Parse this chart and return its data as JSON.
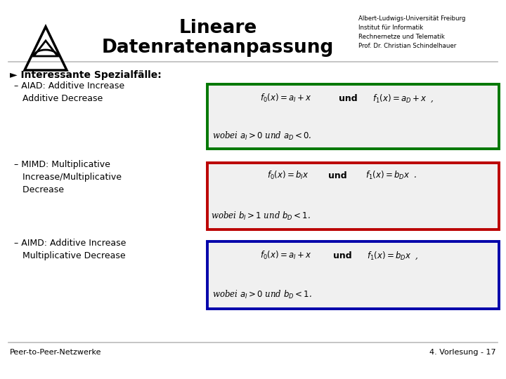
{
  "title_line1": "Lineare",
  "title_line2": "Datenratenanpassung",
  "university_text": "Albert-Ludwigs-Universität Freiburg\nInstitut für Informatik\nRechnernetze und Telematik\nProf. Dr. Christian Schindelhauer",
  "background_color": "#ffffff",
  "header_line_color": "#bbbbbb",
  "bullet_main": "► Interessante Spezialfälle:",
  "bullet1_title": "– AIAD: Additive Increase\n   Additive Decrease",
  "bullet2_title": "– MIMD: Multiplicative\n   Increase/Multiplicative\n   Decrease",
  "bullet3_title": "– AIMD: Additive Increase\n   Multiplicative Decrease",
  "box1_color": "#007700",
  "box2_color": "#bb0000",
  "box3_color": "#0000aa",
  "box_bg": "#f0f0f0",
  "formula1_line1": "$f_0(x) = a_I + x$",
  "formula1_und": "und",
  "formula1_f1": "$f_1(x) = a_D + x$  ,",
  "formula1_line2": "wobei $a_I > 0$ und $a_D < 0$.",
  "formula2_line1": "$f_0(x) = b_I x$",
  "formula2_und": "und",
  "formula2_f1": "$f_1(x) = b_D x$  .",
  "formula2_line2": "wobei $b_I > 1$ und $b_D < 1$.",
  "formula3_line1": "$f_0(x) = a_I + x$",
  "formula3_und": "und",
  "formula3_f1": "$f_1(x) = b_D x$  ,",
  "formula3_line2": "wobei $a_I > 0$ und $b_D < 1$.",
  "footer_left": "Peer-to-Peer-Netzwerke",
  "footer_right": "4. Vorlesung - 17",
  "footer_line_color": "#bbbbbb"
}
